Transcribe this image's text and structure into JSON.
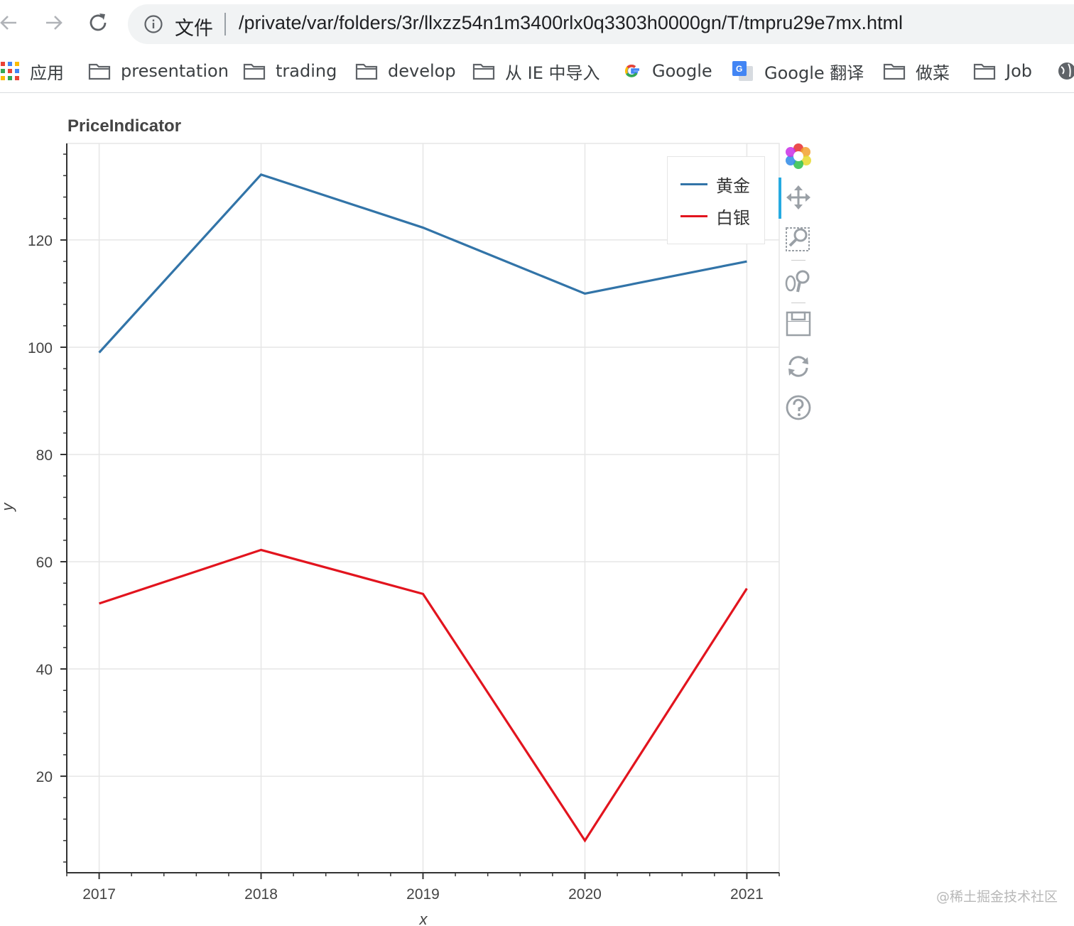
{
  "browser": {
    "file_label": "文件",
    "url": "/private/var/folders/3r/llxzz54n1m3400rlx0q3303h0000gn/T/tmpru29e7mx.html",
    "bookmarks": [
      {
        "label": "应用",
        "icon": "apps-grid-icon"
      },
      {
        "label": "presentation",
        "icon": "folder-icon"
      },
      {
        "label": "trading",
        "icon": "folder-icon"
      },
      {
        "label": "develop",
        "icon": "folder-icon"
      },
      {
        "label": "从 IE 中导入",
        "icon": "folder-icon"
      },
      {
        "label": "Google",
        "icon": "google-icon"
      },
      {
        "label": "Google 翻译",
        "icon": "google-translate-icon"
      },
      {
        "label": "做菜",
        "icon": "folder-icon"
      },
      {
        "label": "Job",
        "icon": "folder-icon"
      }
    ]
  },
  "chart_data": {
    "type": "line",
    "title": "PriceIndicator",
    "xlabel": "x",
    "ylabel": "y",
    "x": [
      2017,
      2018,
      2019,
      2020,
      2021
    ],
    "x_tick_labels": [
      "2017",
      "2018",
      "2019",
      "2020",
      "2021"
    ],
    "y_ticks": [
      20,
      40,
      60,
      80,
      100,
      120
    ],
    "xlim": [
      2016.8,
      2021.2
    ],
    "ylim": [
      2,
      138
    ],
    "grid": true,
    "legend_position": "top-right",
    "series": [
      {
        "name": "黄金",
        "color": "#3274a8",
        "values": [
          99,
          132.2,
          122.3,
          110,
          116
        ]
      },
      {
        "name": "白银",
        "color": "#e2141e",
        "values": [
          52.2,
          62.2,
          54,
          8,
          55
        ]
      }
    ]
  },
  "tools": [
    "bokeh-logo-icon",
    "pan-icon",
    "box-zoom-icon",
    "wheel-zoom-icon",
    "save-icon",
    "reset-icon",
    "help-icon"
  ],
  "watermark": "@稀土掘金技术社区"
}
